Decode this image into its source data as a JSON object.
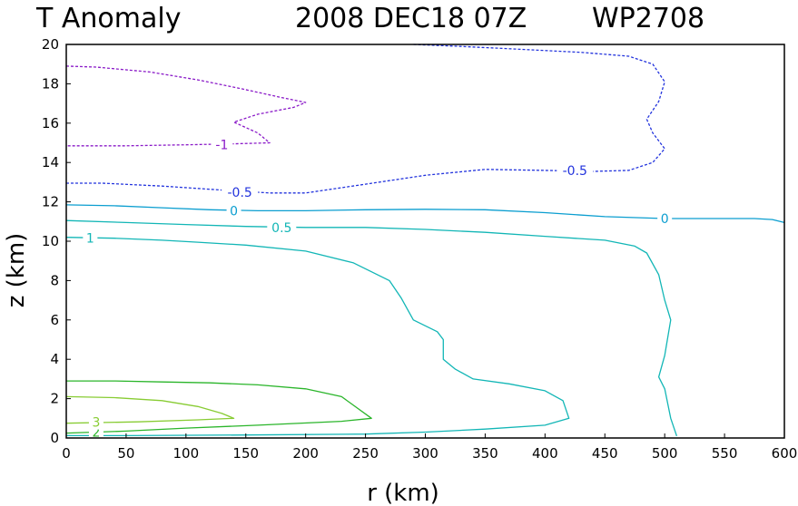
{
  "chart_data": {
    "type": "contour",
    "title": {
      "variable": "T Anomaly",
      "datetime": "2008 DEC18 07Z",
      "storm_id": "WP2708"
    },
    "xlabel": "r (km)",
    "ylabel": "z (km)",
    "xlim": [
      0,
      600
    ],
    "ylim": [
      0,
      20
    ],
    "x_ticks": [
      0,
      50,
      100,
      150,
      200,
      250,
      300,
      350,
      400,
      450,
      500,
      550,
      600
    ],
    "y_ticks": [
      0,
      2,
      4,
      6,
      8,
      10,
      12,
      14,
      16,
      18,
      20
    ],
    "contours": [
      {
        "level": -1,
        "label": "-1",
        "color": "#8a1ac8",
        "style": "dashed",
        "points": [
          [
            0,
            18.9
          ],
          [
            25,
            18.85
          ],
          [
            70,
            18.6
          ],
          [
            110,
            18.2
          ],
          [
            150,
            17.7
          ],
          [
            180,
            17.3
          ],
          [
            200,
            17.05
          ],
          [
            190,
            16.8
          ],
          [
            160,
            16.45
          ],
          [
            140,
            16.05
          ],
          [
            160,
            15.5
          ],
          [
            170,
            15.0
          ],
          [
            140,
            14.95
          ],
          [
            100,
            14.9
          ],
          [
            50,
            14.85
          ],
          [
            0,
            14.85
          ]
        ],
        "label_positions": [
          [
            130,
            14.9
          ]
        ]
      },
      {
        "level": -0.5,
        "label": "-0.5",
        "color": "#2233dd",
        "style": "dashed",
        "points": [
          [
            0,
            12.95
          ],
          [
            30,
            12.95
          ],
          [
            80,
            12.8
          ],
          [
            130,
            12.6
          ],
          [
            170,
            12.45
          ],
          [
            200,
            12.45
          ],
          [
            250,
            12.9
          ],
          [
            300,
            13.35
          ],
          [
            350,
            13.65
          ],
          [
            400,
            13.6
          ],
          [
            440,
            13.55
          ],
          [
            470,
            13.6
          ],
          [
            490,
            14.0
          ],
          [
            500,
            14.7
          ],
          [
            490,
            15.5
          ],
          [
            485,
            16.2
          ],
          [
            495,
            17.1
          ],
          [
            500,
            18.1
          ],
          [
            490,
            19.0
          ],
          [
            470,
            19.4
          ],
          [
            430,
            19.6
          ],
          [
            380,
            19.75
          ],
          [
            330,
            19.9
          ],
          [
            290,
            20.0
          ]
        ],
        "label_positions": [
          [
            145,
            12.5
          ],
          [
            425,
            13.6
          ]
        ]
      },
      {
        "level": 0,
        "label": "0",
        "color": "#0b9ed0",
        "style": "solid",
        "points": [
          [
            0,
            11.85
          ],
          [
            40,
            11.8
          ],
          [
            80,
            11.7
          ],
          [
            120,
            11.6
          ],
          [
            160,
            11.55
          ],
          [
            200,
            11.55
          ],
          [
            250,
            11.6
          ],
          [
            300,
            11.62
          ],
          [
            350,
            11.6
          ],
          [
            400,
            11.45
          ],
          [
            450,
            11.25
          ],
          [
            500,
            11.15
          ],
          [
            550,
            11.15
          ],
          [
            575,
            11.15
          ],
          [
            590,
            11.1
          ],
          [
            600,
            10.95
          ]
        ],
        "label_positions": [
          [
            140,
            11.55
          ],
          [
            500,
            11.15
          ]
        ]
      },
      {
        "level": 0.5,
        "label": "0.5",
        "color": "#12b6b6",
        "style": "solid",
        "points": [
          [
            0,
            11.05
          ],
          [
            50,
            10.95
          ],
          [
            100,
            10.85
          ],
          [
            150,
            10.75
          ],
          [
            200,
            10.7
          ],
          [
            250,
            10.7
          ],
          [
            300,
            10.6
          ],
          [
            350,
            10.45
          ],
          [
            400,
            10.25
          ],
          [
            450,
            10.05
          ],
          [
            475,
            9.75
          ],
          [
            485,
            9.4
          ],
          [
            495,
            8.3
          ],
          [
            500,
            7.0
          ],
          [
            505,
            6.0
          ],
          [
            500,
            4.2
          ],
          [
            495,
            3.1
          ],
          [
            500,
            2.5
          ],
          [
            505,
            1.0
          ],
          [
            510,
            0.1
          ]
        ],
        "label_positions": [
          [
            180,
            10.7
          ]
        ]
      },
      {
        "level": 1,
        "label": "1",
        "color": "#12b6b6",
        "style": "solid",
        "points": [
          [
            0,
            10.2
          ],
          [
            40,
            10.15
          ],
          [
            80,
            10.05
          ],
          [
            110,
            9.95
          ],
          [
            150,
            9.8
          ],
          [
            200,
            9.5
          ],
          [
            240,
            8.9
          ],
          [
            270,
            8.0
          ],
          [
            280,
            7.1
          ],
          [
            290,
            6.0
          ],
          [
            310,
            5.4
          ],
          [
            315,
            5.0
          ],
          [
            315,
            4.0
          ],
          [
            325,
            3.5
          ],
          [
            340,
            3.0
          ],
          [
            370,
            2.75
          ],
          [
            400,
            2.4
          ],
          [
            415,
            1.9
          ],
          [
            420,
            1.0
          ],
          [
            400,
            0.65
          ],
          [
            350,
            0.45
          ],
          [
            300,
            0.3
          ],
          [
            250,
            0.2
          ],
          [
            150,
            0.15
          ],
          [
            50,
            0.12
          ],
          [
            0,
            0.12
          ]
        ],
        "label_positions": [
          [
            20,
            10.15
          ]
        ]
      },
      {
        "level": 2,
        "label": "2",
        "color": "#2ab52a",
        "style": "solid",
        "points": [
          [
            0,
            2.9
          ],
          [
            40,
            2.9
          ],
          [
            80,
            2.85
          ],
          [
            120,
            2.8
          ],
          [
            160,
            2.7
          ],
          [
            200,
            2.5
          ],
          [
            230,
            2.1
          ],
          [
            255,
            1.0
          ],
          [
            230,
            0.85
          ],
          [
            160,
            0.65
          ],
          [
            100,
            0.5
          ],
          [
            50,
            0.35
          ],
          [
            0,
            0.25
          ]
        ],
        "label_positions": [
          [
            25,
            0.3
          ]
        ]
      },
      {
        "level": 3,
        "label": "3",
        "color": "#88cc33",
        "style": "solid",
        "points": [
          [
            0,
            2.1
          ],
          [
            40,
            2.05
          ],
          [
            80,
            1.9
          ],
          [
            110,
            1.6
          ],
          [
            130,
            1.25
          ],
          [
            140,
            1.0
          ],
          [
            110,
            0.92
          ],
          [
            60,
            0.82
          ],
          [
            0,
            0.75
          ]
        ],
        "label_positions": [
          [
            25,
            0.8
          ]
        ]
      }
    ]
  }
}
